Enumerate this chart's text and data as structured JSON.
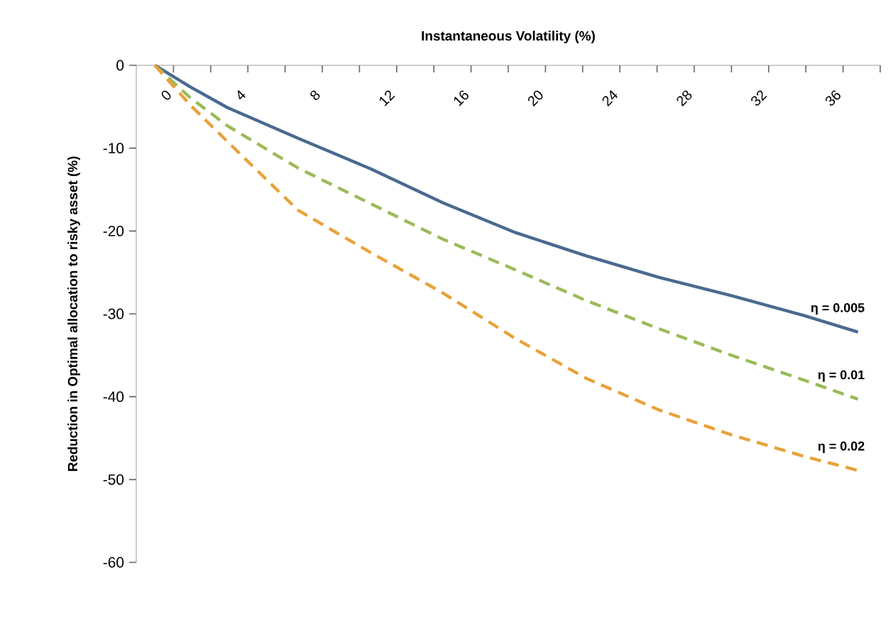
{
  "chart_data": {
    "type": "line",
    "xlabel": "Instantaneous Volatility (%)",
    "ylabel": "Reduction in Optimal allocation to risky asset (%)",
    "x": [
      -1,
      0.9,
      2.9,
      6.7,
      10.6,
      14.5,
      18.4,
      22.2,
      26.1,
      30.0,
      33.9,
      36.8
    ],
    "xlim": [
      -2,
      38
    ],
    "xticks": [
      {
        "value": -2,
        "label": null
      },
      0,
      {
        "value": 2,
        "label": null
      },
      4,
      {
        "value": 6,
        "label": null
      },
      8,
      {
        "value": 10,
        "label": null
      },
      12,
      {
        "value": 14,
        "label": null
      },
      16,
      {
        "value": 18,
        "label": null
      },
      20,
      {
        "value": 22,
        "label": null
      },
      24,
      {
        "value": 26,
        "label": null
      },
      28,
      {
        "value": 30,
        "label": null
      },
      32,
      {
        "value": 34,
        "label": null
      },
      36,
      {
        "value": 38,
        "label": null
      }
    ],
    "ylim": [
      -60,
      0
    ],
    "yticks": [
      -60,
      -50,
      -40,
      -30,
      -20,
      -10,
      0
    ],
    "legend": false,
    "marker": "none",
    "series": [
      {
        "name": "η = 0.005",
        "color": "#4a6a8f",
        "line_style": "solid",
        "values": [
          0,
          -2.6,
          -5.1,
          -8.8,
          -12.5,
          -16.6,
          -20.2,
          -23.0,
          -25.6,
          -27.8,
          -30.2,
          -32.2
        ]
      },
      {
        "name": "η = 0.01",
        "color": "#9bbb59",
        "line_style": "dashed",
        "values": [
          0,
          -3.9,
          -7.3,
          -12.4,
          -16.7,
          -21.0,
          -24.7,
          -28.4,
          -31.8,
          -35.0,
          -38.0,
          -40.3
        ]
      },
      {
        "name": "η = 0.02",
        "color": "#e8a23a",
        "line_style": "dashed",
        "values": [
          0,
          -4.8,
          -9.2,
          -17.5,
          -22.6,
          -27.5,
          -33.0,
          -37.8,
          -41.6,
          -44.6,
          -47.2,
          -48.9
        ]
      }
    ]
  }
}
